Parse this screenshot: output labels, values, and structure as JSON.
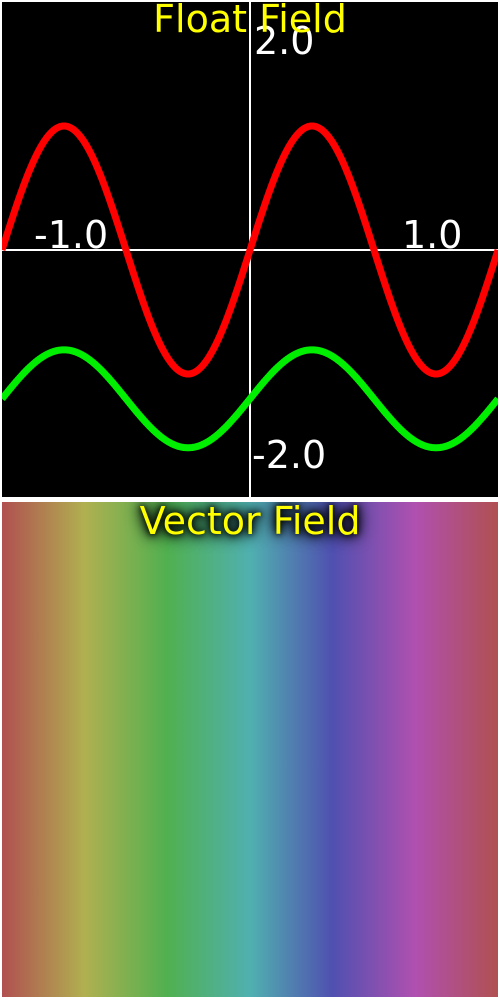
{
  "float_field": {
    "title": "Float Field",
    "axis_labels": {
      "y_max": "2.0",
      "y_min": "-2.0",
      "x_min": "-1.0",
      "x_max": "1.0"
    },
    "colors": {
      "background": "#000000",
      "axes": "#ffffff",
      "title": "#ffff00",
      "series_1": "#ff0000",
      "series_2": "#00ee00"
    },
    "chart_data": {
      "type": "line",
      "xlim": [
        -1.0,
        1.0
      ],
      "ylim": [
        -2.0,
        2.0
      ],
      "grid": false,
      "series": [
        {
          "color": "#ff0000",
          "amplitude": 1.0,
          "offset": 0.0,
          "frequency": 2.0
        },
        {
          "color": "#00ee00",
          "amplitude": 0.395,
          "offset": -1.2,
          "frequency": 2.0
        }
      ]
    }
  },
  "vector_field": {
    "title": "Vector Field",
    "colors": {
      "title": "#ffff00",
      "gradient_stops": [
        "#b05050",
        "#b0b050",
        "#50b050",
        "#50b0b0",
        "#5050b0",
        "#b050b0",
        "#b05050"
      ]
    }
  }
}
